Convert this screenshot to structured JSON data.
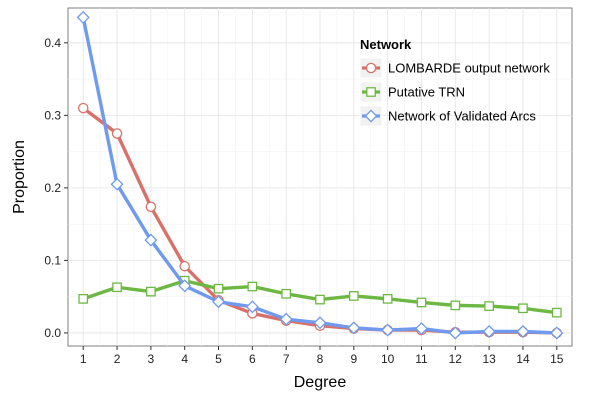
{
  "chart_data": {
    "type": "line",
    "title": "",
    "xlabel": "Degree",
    "ylabel": "Proportion",
    "x": [
      1,
      2,
      3,
      4,
      5,
      6,
      7,
      8,
      9,
      10,
      11,
      12,
      13,
      14,
      15
    ],
    "x_tick_labels": [
      "1",
      "2",
      "3",
      "4",
      "5",
      "6",
      "7",
      "8",
      "9",
      "10",
      "11",
      "12",
      "13",
      "14",
      "15"
    ],
    "xlim": [
      0.55,
      15.45
    ],
    "ylim": [
      -0.018,
      0.448
    ],
    "y_ticks": [
      0.0,
      0.1,
      0.2,
      0.3,
      0.4
    ],
    "y_tick_labels": [
      "0.0",
      "0.1",
      "0.2",
      "0.3",
      "0.4"
    ],
    "grid": true,
    "legend": {
      "title": "Network",
      "position": "top-right"
    },
    "series": [
      {
        "name": "LOMBARDE output network",
        "color": "#D9716A",
        "marker": "circle",
        "values": [
          0.31,
          0.275,
          0.174,
          0.092,
          0.045,
          0.027,
          0.017,
          0.01,
          0.006,
          0.004,
          0.004,
          0.001,
          0.001,
          0.001,
          0.0
        ]
      },
      {
        "name": "Putative TRN",
        "color": "#6DB843",
        "marker": "square",
        "values": [
          0.047,
          0.063,
          0.057,
          0.072,
          0.061,
          0.064,
          0.054,
          0.046,
          0.051,
          0.047,
          0.042,
          0.038,
          0.037,
          0.034,
          0.028
        ]
      },
      {
        "name": "Network of Validated Arcs",
        "color": "#6F9AEE",
        "marker": "diamond",
        "values": [
          0.435,
          0.205,
          0.128,
          0.065,
          0.043,
          0.036,
          0.019,
          0.014,
          0.007,
          0.004,
          0.006,
          0.0,
          0.002,
          0.002,
          0.0
        ]
      }
    ]
  }
}
